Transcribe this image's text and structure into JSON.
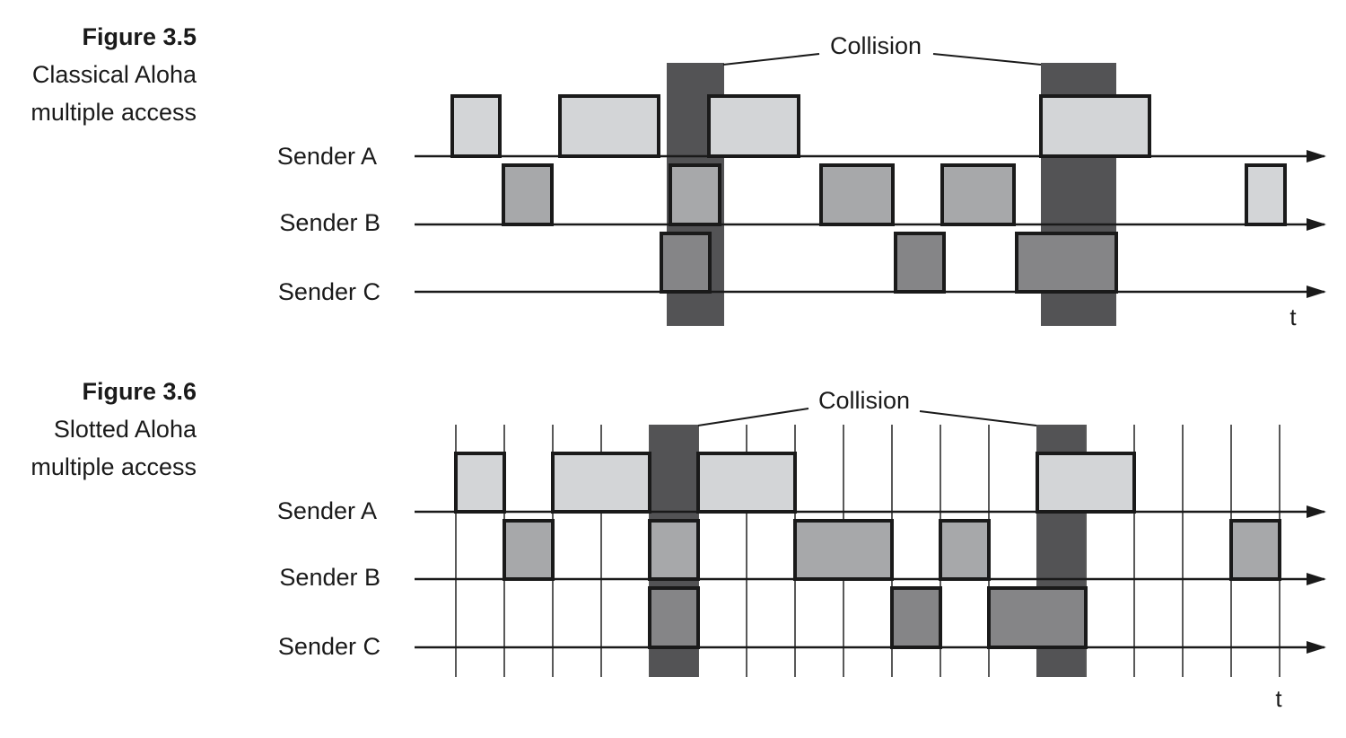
{
  "colors": {
    "sender_a": "#d3d5d7",
    "sender_b": "#a7a8aa",
    "sender_c": "#858587",
    "collision": "#535355",
    "stroke": "#1a1a1a",
    "slot_line": "#222222"
  },
  "figures": [
    {
      "id": "fig35",
      "number": "Figure 3.5",
      "caption_lines": [
        "Classical Aloha",
        "multiple access"
      ],
      "senders": [
        "Sender A",
        "Sender B",
        "Sender C"
      ],
      "collision_label": "Collision",
      "time_label": "t",
      "slotted": false
    },
    {
      "id": "fig36",
      "number": "Figure 3.6",
      "caption_lines": [
        "Slotted Aloha",
        "multiple access"
      ],
      "senders": [
        "Sender A",
        "Sender B",
        "Sender C"
      ],
      "collision_label": "Collision",
      "time_label": "t",
      "slotted": true
    }
  ]
}
